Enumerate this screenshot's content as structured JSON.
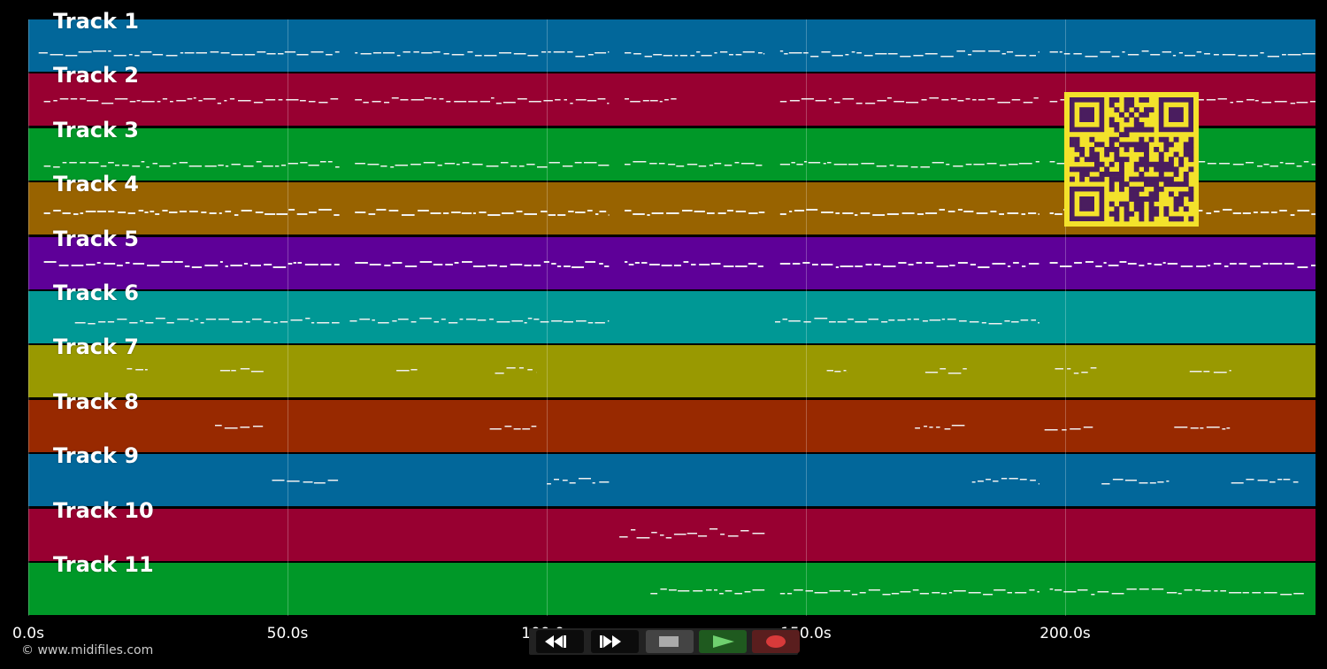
{
  "tracks": [
    {
      "label": "Track 1",
      "color": "#02679a"
    },
    {
      "label": "Track 2",
      "color": "#980031"
    },
    {
      "label": "Track 3",
      "color": "#009828"
    },
    {
      "label": "Track 4",
      "color": "#986300"
    },
    {
      "label": "Track 5",
      "color": "#5e0098"
    },
    {
      "label": "Track 6",
      "color": "#009895"
    },
    {
      "label": "Track 7",
      "color": "#999901"
    },
    {
      "label": "Track 8",
      "color": "#982900"
    },
    {
      "label": "Track 9",
      "color": "#02679a"
    },
    {
      "label": "Track 10",
      "color": "#980031"
    },
    {
      "label": "Track 11",
      "color": "#009828"
    }
  ],
  "timeline": {
    "axis_labels": [
      "0.0s",
      "50.0s",
      "100.0s",
      "150.0s",
      "200.0s"
    ],
    "axis_values": [
      0,
      50,
      100,
      150,
      200
    ],
    "max_seconds": 249
  },
  "copyright": "© www.midifiles.com",
  "transport": {
    "rewind": {
      "icon": "rewind-icon"
    },
    "fast_forward": {
      "icon": "fast-forward-icon"
    },
    "stop": {
      "icon": "stop-icon"
    },
    "play": {
      "icon": "play-icon"
    },
    "record": {
      "icon": "record-icon"
    }
  },
  "qr_code": {
    "icon": "qr-code-icon",
    "color": "#4a1d5f",
    "background": "#f3e22b"
  }
}
